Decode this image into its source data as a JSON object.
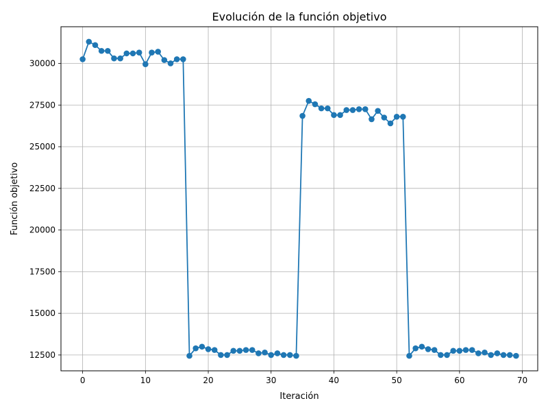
{
  "chart_data": {
    "type": "line",
    "title": "Evolución de la función objetivo",
    "xlabel": "Iteración",
    "ylabel": "Función objetivo",
    "xlim": [
      -3.45,
      72.45
    ],
    "ylim": [
      11550,
      32200
    ],
    "x_ticks": [
      0,
      10,
      20,
      30,
      40,
      50,
      60,
      70
    ],
    "y_ticks": [
      12500,
      15000,
      17500,
      20000,
      22500,
      25000,
      27500,
      30000
    ],
    "grid": true,
    "series": [
      {
        "color": "#1f77b4",
        "marker": "circle",
        "x": [
          0,
          1,
          2,
          3,
          4,
          5,
          6,
          7,
          8,
          9,
          10,
          11,
          12,
          13,
          14,
          15,
          16,
          17,
          18,
          19,
          20,
          21,
          22,
          23,
          24,
          25,
          26,
          27,
          28,
          29,
          30,
          31,
          32,
          33,
          34,
          35,
          36,
          37,
          38,
          39,
          40,
          41,
          42,
          43,
          44,
          45,
          46,
          47,
          48,
          49,
          50,
          51,
          52,
          53,
          54,
          55,
          56,
          57,
          58,
          59,
          60,
          61,
          62,
          63,
          64,
          65,
          66,
          67,
          68,
          69
        ],
        "y": [
          30250,
          31300,
          31100,
          30750,
          30750,
          30300,
          30300,
          30600,
          30600,
          30650,
          29950,
          30650,
          30700,
          30200,
          30000,
          30250,
          30250,
          12450,
          12900,
          13000,
          12850,
          12800,
          12500,
          12500,
          12750,
          12750,
          12800,
          12800,
          12600,
          12650,
          12500,
          12600,
          12500,
          12500,
          12450,
          26850,
          27750,
          27550,
          27300,
          27300,
          26900,
          26900,
          27200,
          27200,
          27250,
          27250,
          26650,
          27150,
          26750,
          26400,
          26800,
          26800,
          12450,
          12900,
          13000,
          12850,
          12800,
          12500,
          12500,
          12750,
          12750,
          12800,
          12800,
          12600,
          12650,
          12500,
          12600,
          12500,
          12500,
          12450
        ]
      }
    ]
  }
}
